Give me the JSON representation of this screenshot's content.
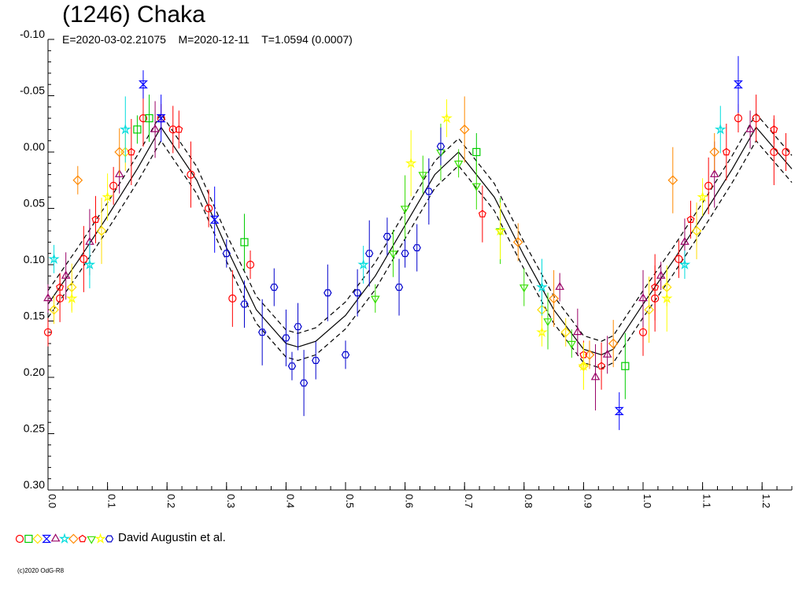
{
  "header": {
    "title": "(1246) Chaka",
    "subtitle": "E=2020-03-02.21075    M=2020-12-11    T=1.0594 (0.0007)"
  },
  "footer": {
    "copyright": "(c)2020 OdG-R8"
  },
  "legend": {
    "label": "David Augustin et al.",
    "symbols": [
      {
        "shape": "circle",
        "color": "#ff0000"
      },
      {
        "shape": "square",
        "color": "#00cc00"
      },
      {
        "shape": "diamond",
        "color": "#ffdd00"
      },
      {
        "shape": "hourglass",
        "color": "#0000ff"
      },
      {
        "shape": "triangle",
        "color": "#990066"
      },
      {
        "shape": "star",
        "color": "#00dddd"
      },
      {
        "shape": "diamond",
        "color": "#ff8800"
      },
      {
        "shape": "pentagon",
        "color": "#ff0000"
      },
      {
        "shape": "triangle-down",
        "color": "#33dd00"
      },
      {
        "shape": "star",
        "color": "#ffff00"
      },
      {
        "shape": "hexagon",
        "color": "#0000cc"
      }
    ]
  },
  "chart_data": {
    "type": "scatter",
    "title": "(1246) Chaka",
    "xlabel": "",
    "ylabel": "",
    "xlim": [
      0.0,
      1.25
    ],
    "ylim": [
      -0.1,
      0.3
    ],
    "y_inverted": true,
    "grid": false,
    "x_ticks": [
      "0.0",
      "0.1",
      "0.2",
      "0.3",
      "0.4",
      "0.5",
      "0.6",
      "0.7",
      "0.8",
      "0.9",
      "1.0",
      "1.1",
      "1.2"
    ],
    "y_ticks": [
      "-0.10",
      "-0.05",
      "0.00",
      "0.05",
      "0.10",
      "0.15",
      "0.20",
      "0.25",
      "0.30"
    ],
    "fit_curve": {
      "x": [
        0.0,
        0.05,
        0.1,
        0.15,
        0.19,
        0.25,
        0.3,
        0.35,
        0.4,
        0.42,
        0.45,
        0.5,
        0.55,
        0.6,
        0.65,
        0.69,
        0.75,
        0.8,
        0.85,
        0.9,
        0.93,
        0.95,
        1.0,
        1.05,
        1.1,
        1.15,
        1.19,
        1.25
      ],
      "y": [
        0.135,
        0.097,
        0.057,
        0.015,
        -0.022,
        0.025,
        0.085,
        0.14,
        0.17,
        0.173,
        0.168,
        0.145,
        0.11,
        0.065,
        0.02,
        0.0,
        0.04,
        0.092,
        0.14,
        0.175,
        0.18,
        0.175,
        0.135,
        0.097,
        0.057,
        0.015,
        -0.022,
        0.015
      ],
      "band": 0.012
    },
    "series": [
      {
        "shape": "circle",
        "color": "#ff0000",
        "x": [
          0.0,
          0.02,
          0.06,
          0.11,
          0.16,
          0.19,
          0.21,
          0.24,
          0.27,
          0.31,
          0.34,
          1.0,
          1.02,
          1.06,
          1.11,
          1.16,
          1.19,
          1.22,
          1.24
        ],
        "y": [
          0.16,
          0.13,
          0.095,
          0.03,
          -0.03,
          -0.03,
          -0.02,
          0.02,
          0.05,
          0.13,
          0.1,
          0.16,
          0.13,
          0.095,
          0.03,
          -0.03,
          -0.03,
          0.0,
          0.0
        ]
      },
      {
        "shape": "square",
        "color": "#00cc00",
        "x": [
          0.15,
          0.17,
          0.97,
          0.72,
          0.33
        ],
        "y": [
          -0.02,
          -0.03,
          0.19,
          0.0,
          0.08
        ]
      },
      {
        "shape": "diamond",
        "color": "#ffdd00",
        "x": [
          0.01,
          0.04,
          0.09,
          0.13,
          0.83,
          0.87,
          0.9,
          1.01,
          1.04,
          1.09
        ],
        "y": [
          0.14,
          0.12,
          0.07,
          0.0,
          0.14,
          0.16,
          0.19,
          0.14,
          0.12,
          0.07
        ]
      },
      {
        "shape": "hourglass",
        "color": "#0000ff",
        "x": [
          0.16,
          0.19,
          0.28,
          0.96,
          1.16
        ],
        "y": [
          -0.06,
          -0.03,
          0.06,
          0.23,
          -0.06
        ]
      },
      {
        "shape": "triangle",
        "color": "#990066",
        "x": [
          0.0,
          0.03,
          0.07,
          0.12,
          0.18,
          0.86,
          0.89,
          0.92,
          0.94,
          1.0,
          1.03,
          1.07,
          1.12,
          1.18
        ],
        "y": [
          0.13,
          0.11,
          0.08,
          0.02,
          -0.02,
          0.12,
          0.16,
          0.2,
          0.18,
          0.13,
          0.11,
          0.08,
          0.02,
          -0.02
        ]
      },
      {
        "shape": "star",
        "color": "#00dddd",
        "x": [
          0.01,
          0.07,
          0.13,
          0.53,
          0.83,
          1.07,
          1.13
        ],
        "y": [
          0.095,
          0.1,
          -0.02,
          0.1,
          0.12,
          0.1,
          -0.02
        ]
      },
      {
        "shape": "diamond",
        "color": "#ff8800",
        "x": [
          0.05,
          0.12,
          0.7,
          0.79,
          0.85,
          0.91,
          0.95,
          1.05,
          1.12
        ],
        "y": [
          0.025,
          0.0,
          -0.02,
          0.08,
          0.13,
          0.18,
          0.17,
          0.025,
          0.0
        ]
      },
      {
        "shape": "pentagon",
        "color": "#ff0000",
        "x": [
          0.02,
          0.08,
          0.14,
          0.22,
          0.73,
          0.9,
          0.93,
          1.02,
          1.08,
          1.14,
          1.22
        ],
        "y": [
          0.12,
          0.06,
          0.0,
          -0.02,
          0.055,
          0.18,
          0.19,
          0.12,
          0.06,
          0.0,
          -0.02
        ]
      },
      {
        "shape": "triangle-down",
        "color": "#33dd00",
        "x": [
          0.55,
          0.58,
          0.6,
          0.63,
          0.66,
          0.69,
          0.72,
          0.76,
          0.8,
          0.84,
          0.88
        ],
        "y": [
          0.13,
          0.09,
          0.05,
          0.02,
          0.0,
          0.01,
          0.03,
          0.07,
          0.12,
          0.15,
          0.17
        ]
      },
      {
        "shape": "star",
        "color": "#ffff00",
        "x": [
          0.04,
          0.1,
          0.61,
          0.67,
          0.76,
          0.83,
          0.9,
          1.04,
          1.1
        ],
        "y": [
          0.13,
          0.04,
          0.01,
          -0.03,
          0.07,
          0.16,
          0.19,
          0.13,
          0.04
        ]
      },
      {
        "shape": "hexagon",
        "color": "#0000cc",
        "x": [
          0.3,
          0.33,
          0.36,
          0.38,
          0.4,
          0.41,
          0.42,
          0.43,
          0.45,
          0.47,
          0.5,
          0.52,
          0.54,
          0.57,
          0.59,
          0.6,
          0.62,
          0.64,
          0.66
        ],
        "y": [
          0.09,
          0.135,
          0.16,
          0.12,
          0.165,
          0.19,
          0.155,
          0.205,
          0.185,
          0.125,
          0.18,
          0.125,
          0.09,
          0.075,
          0.12,
          0.09,
          0.085,
          0.035,
          -0.005
        ]
      }
    ]
  }
}
